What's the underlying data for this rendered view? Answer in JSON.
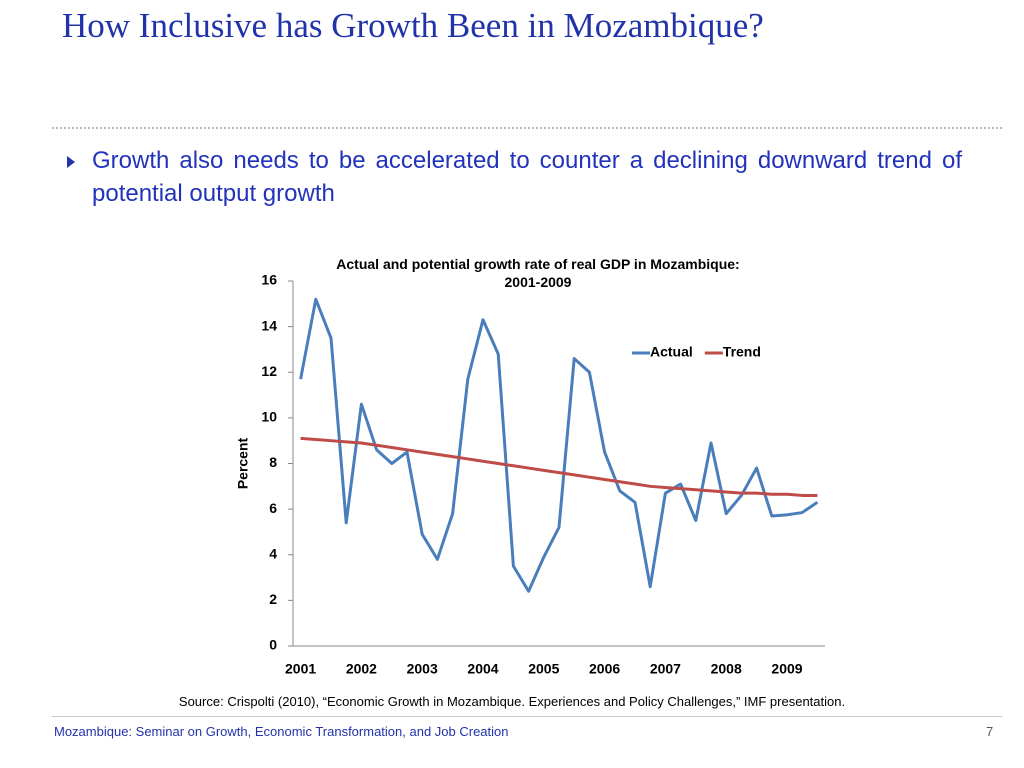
{
  "header": {
    "title": "How Inclusive has Growth Been in Mozambique?"
  },
  "bullet": "Growth also needs to be accelerated to counter a declining downward trend of potential output growth",
  "chart_data": {
    "type": "line",
    "title": "Actual  and potential growth rate of real GDP in Mozambique: 2001-2009",
    "y_label": "Percent",
    "categories": [
      "2001",
      null,
      null,
      null,
      "2002",
      null,
      null,
      null,
      "2003",
      null,
      null,
      null,
      "2004",
      null,
      null,
      null,
      "2005",
      null,
      null,
      null,
      "2006",
      null,
      null,
      null,
      "2007",
      null,
      null,
      null,
      "2008",
      null,
      null,
      null,
      "2009",
      null,
      null
    ],
    "series": [
      {
        "name": "Actual",
        "color": "#4a7ebb",
        "values": [
          11.7,
          15.2,
          13.5,
          5.4,
          10.6,
          8.6,
          8.0,
          8.5,
          4.9,
          3.8,
          5.8,
          11.7,
          14.3,
          12.8,
          3.5,
          2.4,
          3.9,
          5.2,
          12.6,
          12.0,
          8.5,
          6.8,
          6.3,
          2.6,
          6.7,
          7.1,
          5.5,
          8.9,
          5.8,
          6.6,
          7.8,
          5.7,
          5.75,
          5.85,
          6.3
        ]
      },
      {
        "name": "Trend",
        "color": "#be4b48",
        "values": [
          9.1,
          9.05,
          9.0,
          8.95,
          8.9,
          8.8,
          8.7,
          8.6,
          8.5,
          8.4,
          8.3,
          8.2,
          8.1,
          8.0,
          7.9,
          7.8,
          7.7,
          7.6,
          7.5,
          7.4,
          7.3,
          7.2,
          7.1,
          7.0,
          6.95,
          6.9,
          6.85,
          6.8,
          6.75,
          6.7,
          6.7,
          6.65,
          6.65,
          6.6,
          6.6
        ]
      }
    ],
    "ylim": [
      0,
      16
    ],
    "yticks": [
      0,
      2,
      4,
      6,
      8,
      10,
      12,
      14,
      16
    ],
    "grid": false,
    "legend": "top-right"
  },
  "source": "Source: Crispolti (2010), “Economic Growth in Mozambique. Experiences and Policy Challenges,” IMF presentation.",
  "footer": "Mozambique: Seminar on Growth, Economic Transformation, and Job Creation",
  "page_number": "7"
}
